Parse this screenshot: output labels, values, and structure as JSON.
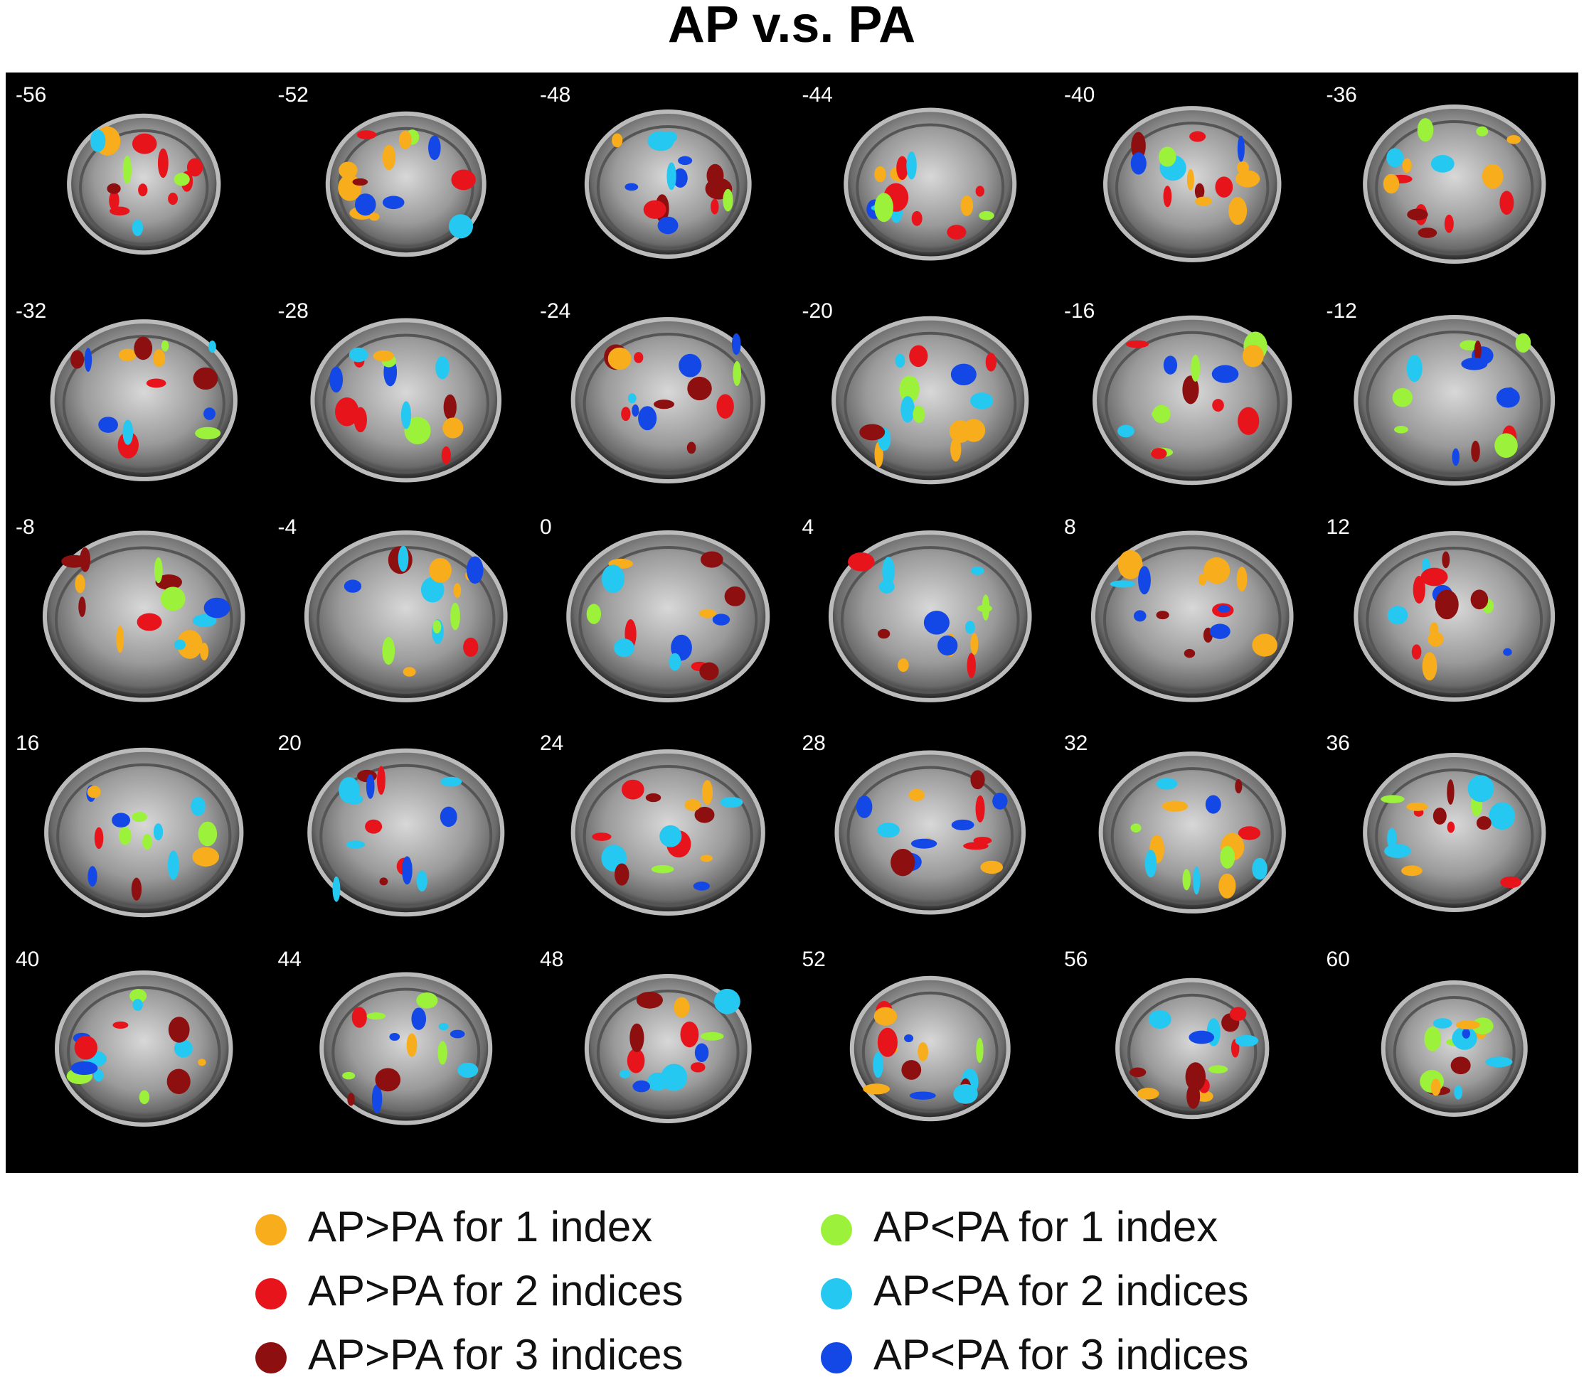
{
  "title": "AP v.s. PA",
  "slices": [
    "-56",
    "-52",
    "-48",
    "-44",
    "-40",
    "-36",
    "-32",
    "-28",
    "-24",
    "-20",
    "-16",
    "-12",
    "-8",
    "-4",
    "0",
    "4",
    "8",
    "12",
    "16",
    "20",
    "24",
    "28",
    "32",
    "36",
    "40",
    "44",
    "48",
    "52",
    "56",
    "60"
  ],
  "legend": [
    {
      "label": "AP>PA for 1 index",
      "color": "#f7ad1c"
    },
    {
      "label": "AP<PA for 1 index",
      "color": "#9cf23a"
    },
    {
      "label": "AP>PA for 2 indices",
      "color": "#e8141b"
    },
    {
      "label": "AP<PA for 2 indices",
      "color": "#24c8f0"
    },
    {
      "label": "AP>PA for 3 indices",
      "color": "#8e0f0f"
    },
    {
      "label": "AP<PA for 3 indices",
      "color": "#1448e6"
    }
  ]
}
